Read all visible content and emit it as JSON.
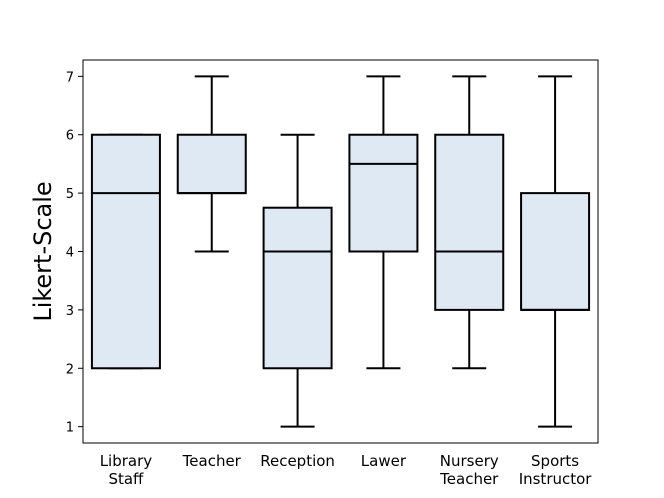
{
  "chart_data": {
    "type": "box",
    "title": "",
    "xlabel": "",
    "ylabel": "Likert-Scale",
    "ylim": [
      0.72,
      7.28
    ],
    "yticks": [
      1,
      2,
      3,
      4,
      5,
      6,
      7
    ],
    "grid": false,
    "box_color": "#dfe9f3",
    "line_color": "#000000",
    "categories": [
      {
        "label_lines": [
          "Library",
          "Staff"
        ],
        "min": 2,
        "q1": 2,
        "median": 5,
        "q3": 6,
        "max": 6
      },
      {
        "label_lines": [
          "Teacher"
        ],
        "min": 4,
        "q1": 5,
        "median": 5,
        "q3": 6,
        "max": 7
      },
      {
        "label_lines": [
          "Reception"
        ],
        "min": 1,
        "q1": 2,
        "median": 4,
        "q3": 4.75,
        "max": 6
      },
      {
        "label_lines": [
          "Lawer"
        ],
        "min": 2,
        "q1": 4,
        "median": 5.5,
        "q3": 6,
        "max": 7
      },
      {
        "label_lines": [
          "Nursery",
          "Teacher"
        ],
        "min": 2,
        "q1": 3,
        "median": 4,
        "q3": 6,
        "max": 7
      },
      {
        "label_lines": [
          "Sports",
          "Instructor"
        ],
        "min": 1,
        "q1": 3,
        "median": 3,
        "q3": 5,
        "max": 7
      }
    ]
  }
}
